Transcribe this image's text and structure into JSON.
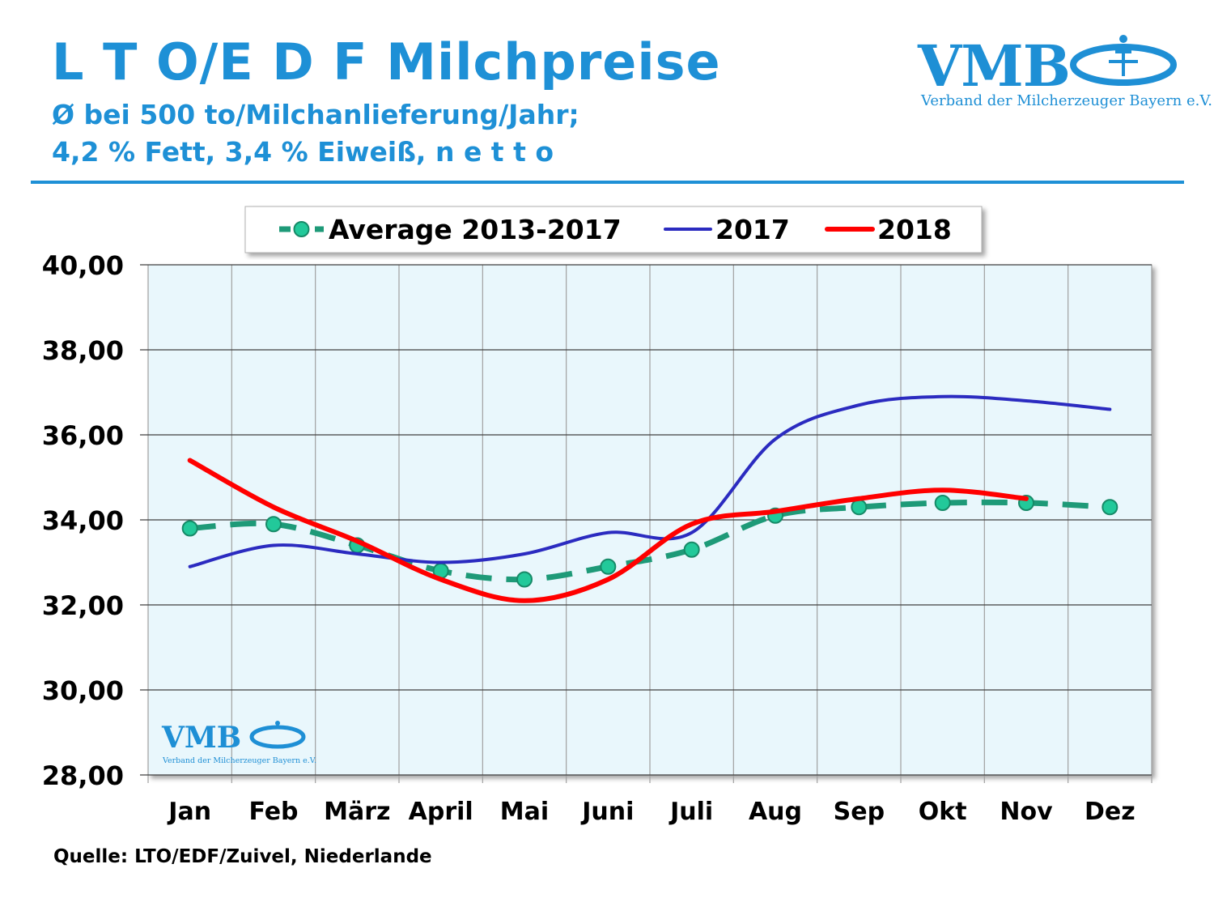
{
  "header": {
    "title": "L T O/E D F Milchpreise",
    "subtitle_line1": "Ø bei 500 to/Milchanlieferung/Jahr;",
    "subtitle_line2": "4,2 % Fett, 3,4 % Eiweiß, n e t t o"
  },
  "logo": {
    "name": "VMB",
    "tagline": "Verband der Milcherzeuger Bayern e.V."
  },
  "source": "Quelle: LTO/EDF/Zuivel, Niederlande",
  "colors": {
    "brand": "#1e90d6",
    "plot_bg": "#e9f7fc",
    "average": "#1e9a78",
    "average_marker": "#22c99a",
    "y2017": "#2b2bc0",
    "y2018": "#ff0000"
  },
  "chart_data": {
    "type": "line",
    "categories": [
      "Jan",
      "Feb",
      "März",
      "April",
      "Mai",
      "Juni",
      "Juli",
      "Aug",
      "Sep",
      "Okt",
      "Nov",
      "Dez"
    ],
    "ylim": [
      28,
      40
    ],
    "yticks": [
      "28,00",
      "30,00",
      "32,00",
      "34,00",
      "36,00",
      "38,00",
      "40,00"
    ],
    "grid": true,
    "legend": "top",
    "series": [
      {
        "name": "Average 2013-2017",
        "style": "dashed-markers",
        "values": [
          33.8,
          33.9,
          33.4,
          32.8,
          32.6,
          32.9,
          33.3,
          34.1,
          34.3,
          34.4,
          34.4,
          34.3
        ]
      },
      {
        "name": "2017",
        "style": "solid",
        "values": [
          32.9,
          33.4,
          33.2,
          33.0,
          33.2,
          33.7,
          33.7,
          35.9,
          36.7,
          36.9,
          36.8,
          36.6
        ]
      },
      {
        "name": "2018",
        "style": "solid-thick",
        "values": [
          35.4,
          34.3,
          33.5,
          32.6,
          32.1,
          32.6,
          33.9,
          34.2,
          34.5,
          34.7,
          34.5,
          null
        ]
      }
    ]
  }
}
